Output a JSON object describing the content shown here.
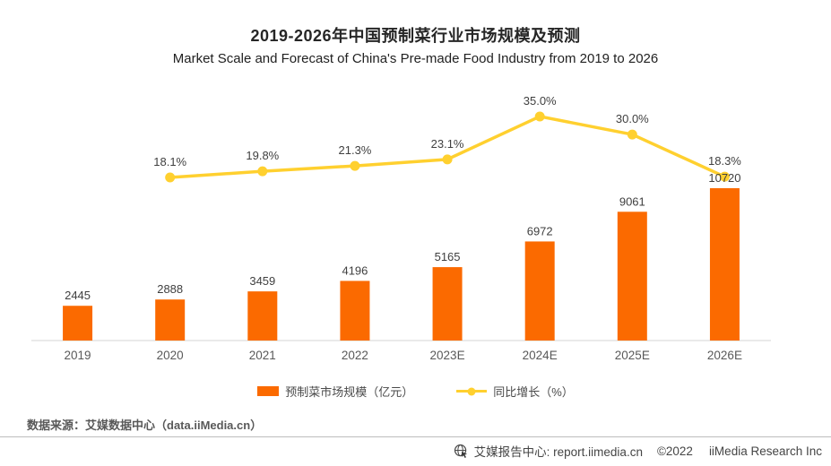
{
  "chart_data": {
    "type": "bar+line",
    "title": "2019-2026年中国预制菜行业市场规模及预测",
    "subtitle": "Market Scale and Forecast of China's Pre-made Food Industry from 2019 to 2026",
    "categories": [
      "2019",
      "2020",
      "2021",
      "2022",
      "2023E",
      "2024E",
      "2025E",
      "2026E"
    ],
    "series": [
      {
        "name": "预制菜市场规模（亿元）",
        "type": "bar",
        "color": "#FB6A00",
        "values": [
          2445,
          2888,
          3459,
          4196,
          5165,
          6972,
          9061,
          10720
        ],
        "labels": [
          "2445",
          "2888",
          "3459",
          "4196",
          "5165",
          "6972",
          "9061",
          "10720"
        ]
      },
      {
        "name": "同比增长（%）",
        "type": "line",
        "color": "#FFD02F",
        "values": [
          null,
          18.1,
          19.8,
          21.3,
          23.1,
          35.0,
          30.0,
          18.3
        ],
        "labels": [
          null,
          "18.1%",
          "19.8%",
          "21.3%",
          "23.1%",
          "35.0%",
          "30.0%",
          "18.3%"
        ]
      }
    ],
    "axes": {
      "x_axis_line_visible": true,
      "y_axis_ticks_visible": false,
      "gridlines": false,
      "value_labels_visible": true
    },
    "legend_position": "bottom-center",
    "label_color": "#3F3F3F",
    "category_label_color": "#595959"
  },
  "footer": {
    "source_note": "数据来源：艾媒数据中心（data.iiMedia.cn）",
    "report_center": "艾媒报告中心: report.iimedia.cn",
    "copyright": "©2022",
    "company": "iiMedia Research Inc"
  }
}
